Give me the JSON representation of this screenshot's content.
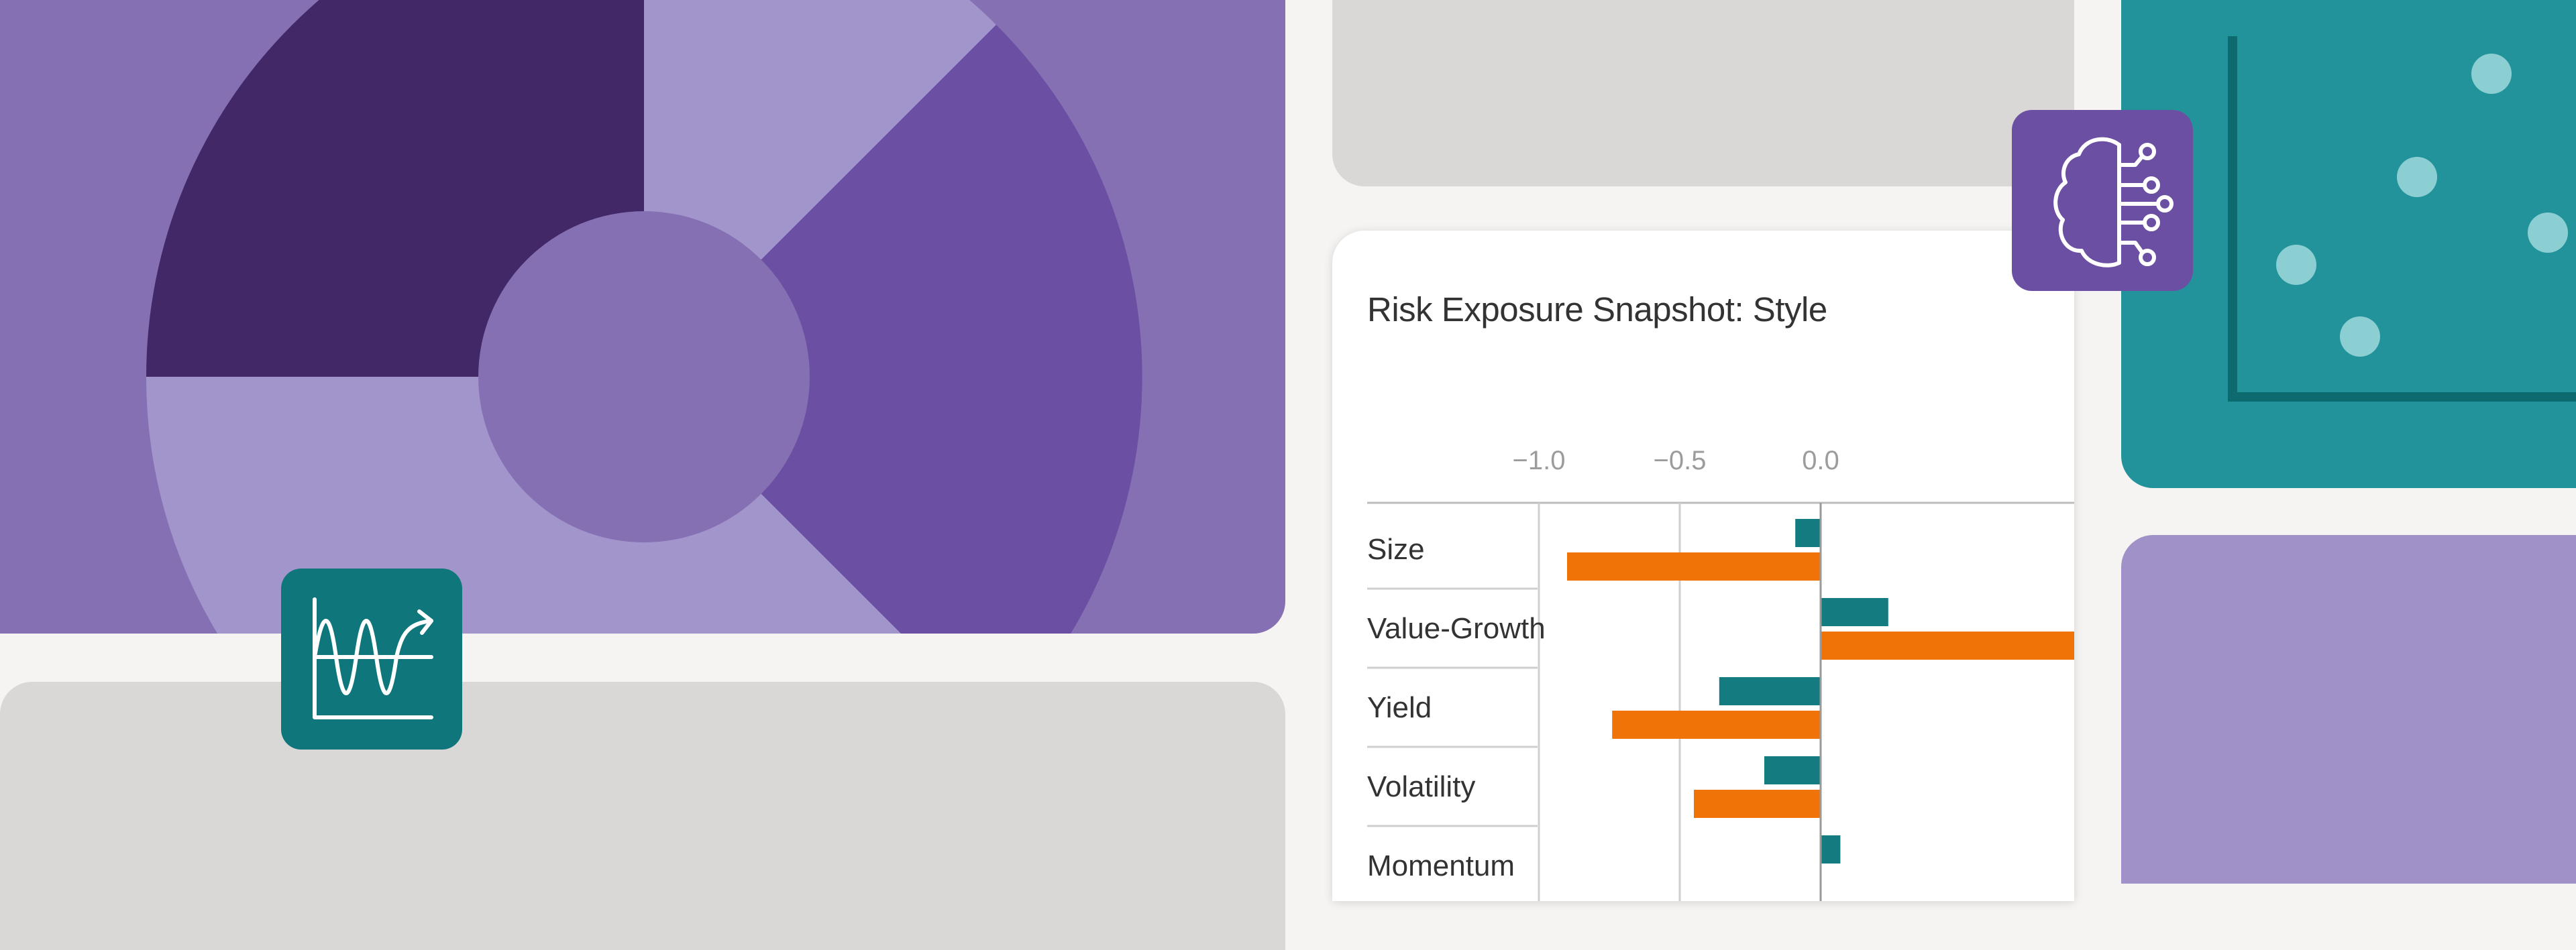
{
  "chart_data": {
    "type": "bar",
    "orientation": "horizontal",
    "title": "Risk Exposure Snapshot: Style",
    "xlabel": "",
    "ylabel": "",
    "ticks": [
      {
        "value": -1.0,
        "label": "−1.0"
      },
      {
        "value": -0.5,
        "label": "−0.5"
      },
      {
        "value": 0.0,
        "label": "0.0"
      }
    ],
    "xlim": [
      -1.2,
      0.95
    ],
    "grid": false,
    "legend": "none",
    "categories": [
      "Size",
      "Value-Growth",
      "Yield",
      "Volatility",
      "Momentum"
    ],
    "series": [
      {
        "color": "#147b80",
        "values": [
          -0.09,
          0.24,
          -0.36,
          -0.2,
          0.07
        ]
      },
      {
        "color": "#f07308",
        "values": [
          -0.9,
          0.95,
          -0.74,
          -0.45,
          null
        ]
      }
    ]
  },
  "decor": {
    "donut_colors": {
      "background": "#8470b3",
      "dark_segment": "#422866",
      "light_segment": "#a295cb",
      "mid_segment": "#6b4fa3",
      "center": "#8470b3"
    },
    "scatter_points_color": "#8ccfd2",
    "icons": {
      "ai_badge": "brain-circuit-icon",
      "trend_badge": "wave-chart-icon"
    }
  }
}
